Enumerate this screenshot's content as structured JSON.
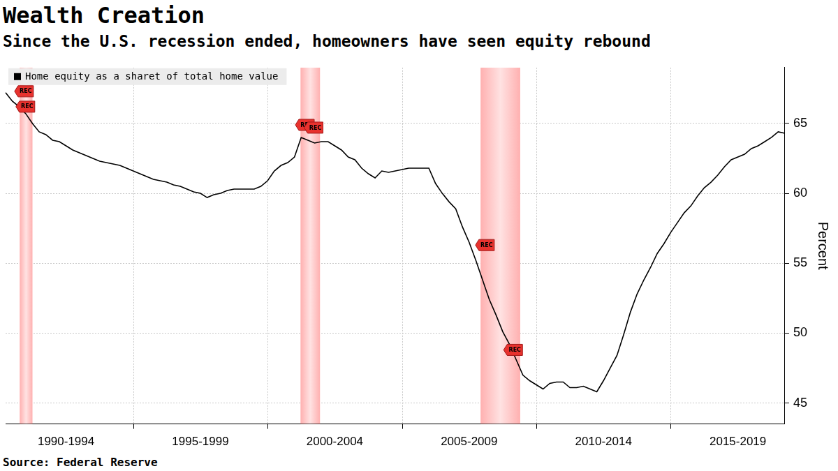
{
  "chart_data": {
    "type": "line",
    "title": "Wealth Creation",
    "subtitle": "Since the U.S. recession ended, homeowners have seen equity rebound",
    "source": "Source: Federal Reserve",
    "y_label": "Percent",
    "categories": [
      null,
      null,
      null,
      null,
      null,
      null,
      null,
      null,
      null,
      "1990-1994",
      null,
      null,
      null,
      null,
      null,
      null,
      null,
      null,
      null,
      null,
      null,
      null,
      null,
      null,
      null,
      null,
      null,
      null,
      null,
      "1995-1999",
      null,
      null,
      null,
      null,
      null,
      null,
      null,
      null,
      null,
      null,
      null,
      null,
      null,
      null,
      null,
      null,
      null,
      null,
      null,
      "2000-2004",
      null,
      null,
      null,
      null,
      null,
      null,
      null,
      null,
      null,
      null,
      null,
      null,
      null,
      null,
      null,
      null,
      null,
      null,
      null,
      "2005-2009",
      null,
      null,
      null,
      null,
      null,
      null,
      null,
      null,
      null,
      null,
      null,
      null,
      null,
      null,
      null,
      null,
      null,
      null,
      null,
      "2010-2014",
      null,
      null,
      null,
      null,
      null,
      null,
      null,
      null,
      null,
      null,
      null,
      null,
      null,
      null,
      null,
      null,
      null,
      null,
      null,
      "2015-2019",
      null,
      null,
      null,
      null,
      null,
      null,
      null
    ],
    "series": [
      {
        "name": "Home equity as a sharet of total home value",
        "color": "#000000",
        "values": [
          67.2,
          66.6,
          66.2,
          65.7,
          65.0,
          64.4,
          64.2,
          63.8,
          63.7,
          63.4,
          63.1,
          62.9,
          62.7,
          62.5,
          62.3,
          62.2,
          62.1,
          62.0,
          61.8,
          61.6,
          61.4,
          61.2,
          61.0,
          60.9,
          60.8,
          60.6,
          60.5,
          60.3,
          60.1,
          60.0,
          59.7,
          59.9,
          60.0,
          60.2,
          60.3,
          60.3,
          60.3,
          60.3,
          60.5,
          60.9,
          61.6,
          62.0,
          62.2,
          62.6,
          64.0,
          63.8,
          63.6,
          63.7,
          63.7,
          63.4,
          63.1,
          62.6,
          62.4,
          61.8,
          61.4,
          61.1,
          61.6,
          61.5,
          61.6,
          61.7,
          61.8,
          61.8,
          61.8,
          61.8,
          60.7,
          60.0,
          59.4,
          58.9,
          57.6,
          56.5,
          55.2,
          53.8,
          52.4,
          51.3,
          50.1,
          49.2,
          48.1,
          47.0,
          46.6,
          46.3,
          46.0,
          46.4,
          46.5,
          46.5,
          46.1,
          46.1,
          46.2,
          46.0,
          45.8,
          46.6,
          47.5,
          48.4,
          49.9,
          51.5,
          52.8,
          53.8,
          54.7,
          55.7,
          56.4,
          57.2,
          57.9,
          58.6,
          59.1,
          59.8,
          60.4,
          60.8,
          61.3,
          61.9,
          62.4,
          62.6,
          62.8,
          63.2,
          63.4,
          63.7,
          64.0,
          64.4,
          64.3
        ]
      }
    ],
    "ylim": [
      43.5,
      69
    ],
    "yticks": [
      45,
      50,
      55,
      60,
      65
    ],
    "grid": true,
    "legend": "top-left",
    "recessions": [
      {
        "start": 2.1,
        "end": 4.0
      },
      {
        "start": 43.9,
        "end": 46.8
      },
      {
        "start": 70.7,
        "end": 76.6
      }
    ],
    "annotations": [
      {
        "text": "REC",
        "x": 3.0,
        "y": 67.3
      },
      {
        "text": "REC",
        "x": 3.2,
        "y": 66.2
      },
      {
        "text": "REC",
        "x": 44.8,
        "y": 64.9
      },
      {
        "text": "REC",
        "x": 46.1,
        "y": 64.7
      },
      {
        "text": "REC",
        "x": 71.6,
        "y": 56.3
      },
      {
        "text": "REC",
        "x": 75.8,
        "y": 48.8
      }
    ]
  }
}
